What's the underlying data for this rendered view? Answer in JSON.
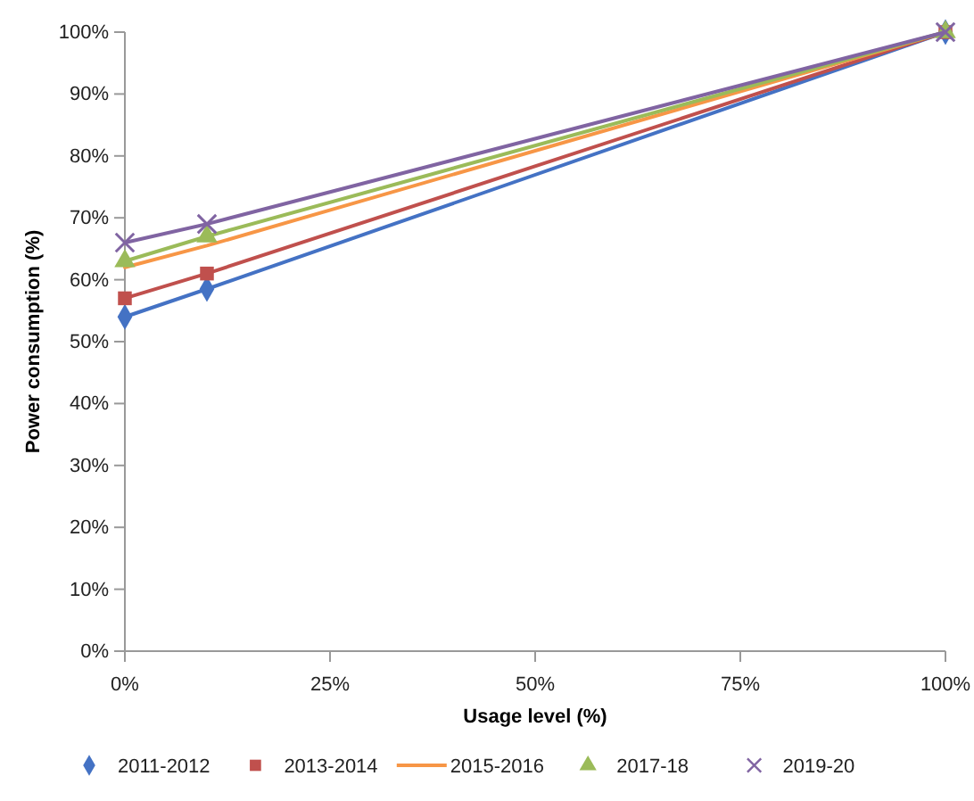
{
  "chart_data": {
    "type": "line",
    "xlabel": "Usage level (%)",
    "ylabel": "Power consumption (%)",
    "x": [
      0,
      10,
      100
    ],
    "series": [
      {
        "name": "2011-2012",
        "color": "#4472c4",
        "marker": "diamond",
        "values": [
          54,
          58.5,
          100
        ]
      },
      {
        "name": "2013-2014",
        "color": "#c0504d",
        "marker": "square",
        "values": [
          57,
          61,
          100
        ]
      },
      {
        "name": "2015-2016",
        "color": "#f79646",
        "marker": "none",
        "values": [
          62,
          65.5,
          100
        ]
      },
      {
        "name": "2017-18",
        "color": "#9bbb59",
        "marker": "triangle",
        "values": [
          63,
          67,
          100
        ]
      },
      {
        "name": "2019-20",
        "color": "#8064a2",
        "marker": "cross",
        "values": [
          66,
          69,
          100
        ]
      }
    ],
    "xlim": [
      0,
      100
    ],
    "xticks": [
      {
        "value": 0,
        "label": "0%"
      },
      {
        "value": 25,
        "label": "25%"
      },
      {
        "value": 50,
        "label": "50%"
      },
      {
        "value": 75,
        "label": "75%"
      },
      {
        "value": 100,
        "label": "100%"
      }
    ],
    "ylim": [
      0,
      100
    ],
    "yticks": [
      {
        "value": 0,
        "label": "0%"
      },
      {
        "value": 10,
        "label": "10%"
      },
      {
        "value": 20,
        "label": "20%"
      },
      {
        "value": 30,
        "label": "30%"
      },
      {
        "value": 40,
        "label": "40%"
      },
      {
        "value": 50,
        "label": "50%"
      },
      {
        "value": 60,
        "label": "60%"
      },
      {
        "value": 70,
        "label": "70%"
      },
      {
        "value": 80,
        "label": "80%"
      },
      {
        "value": 90,
        "label": "90%"
      },
      {
        "value": 100,
        "label": "100%"
      }
    ],
    "grid": false,
    "legend": "bottom"
  }
}
